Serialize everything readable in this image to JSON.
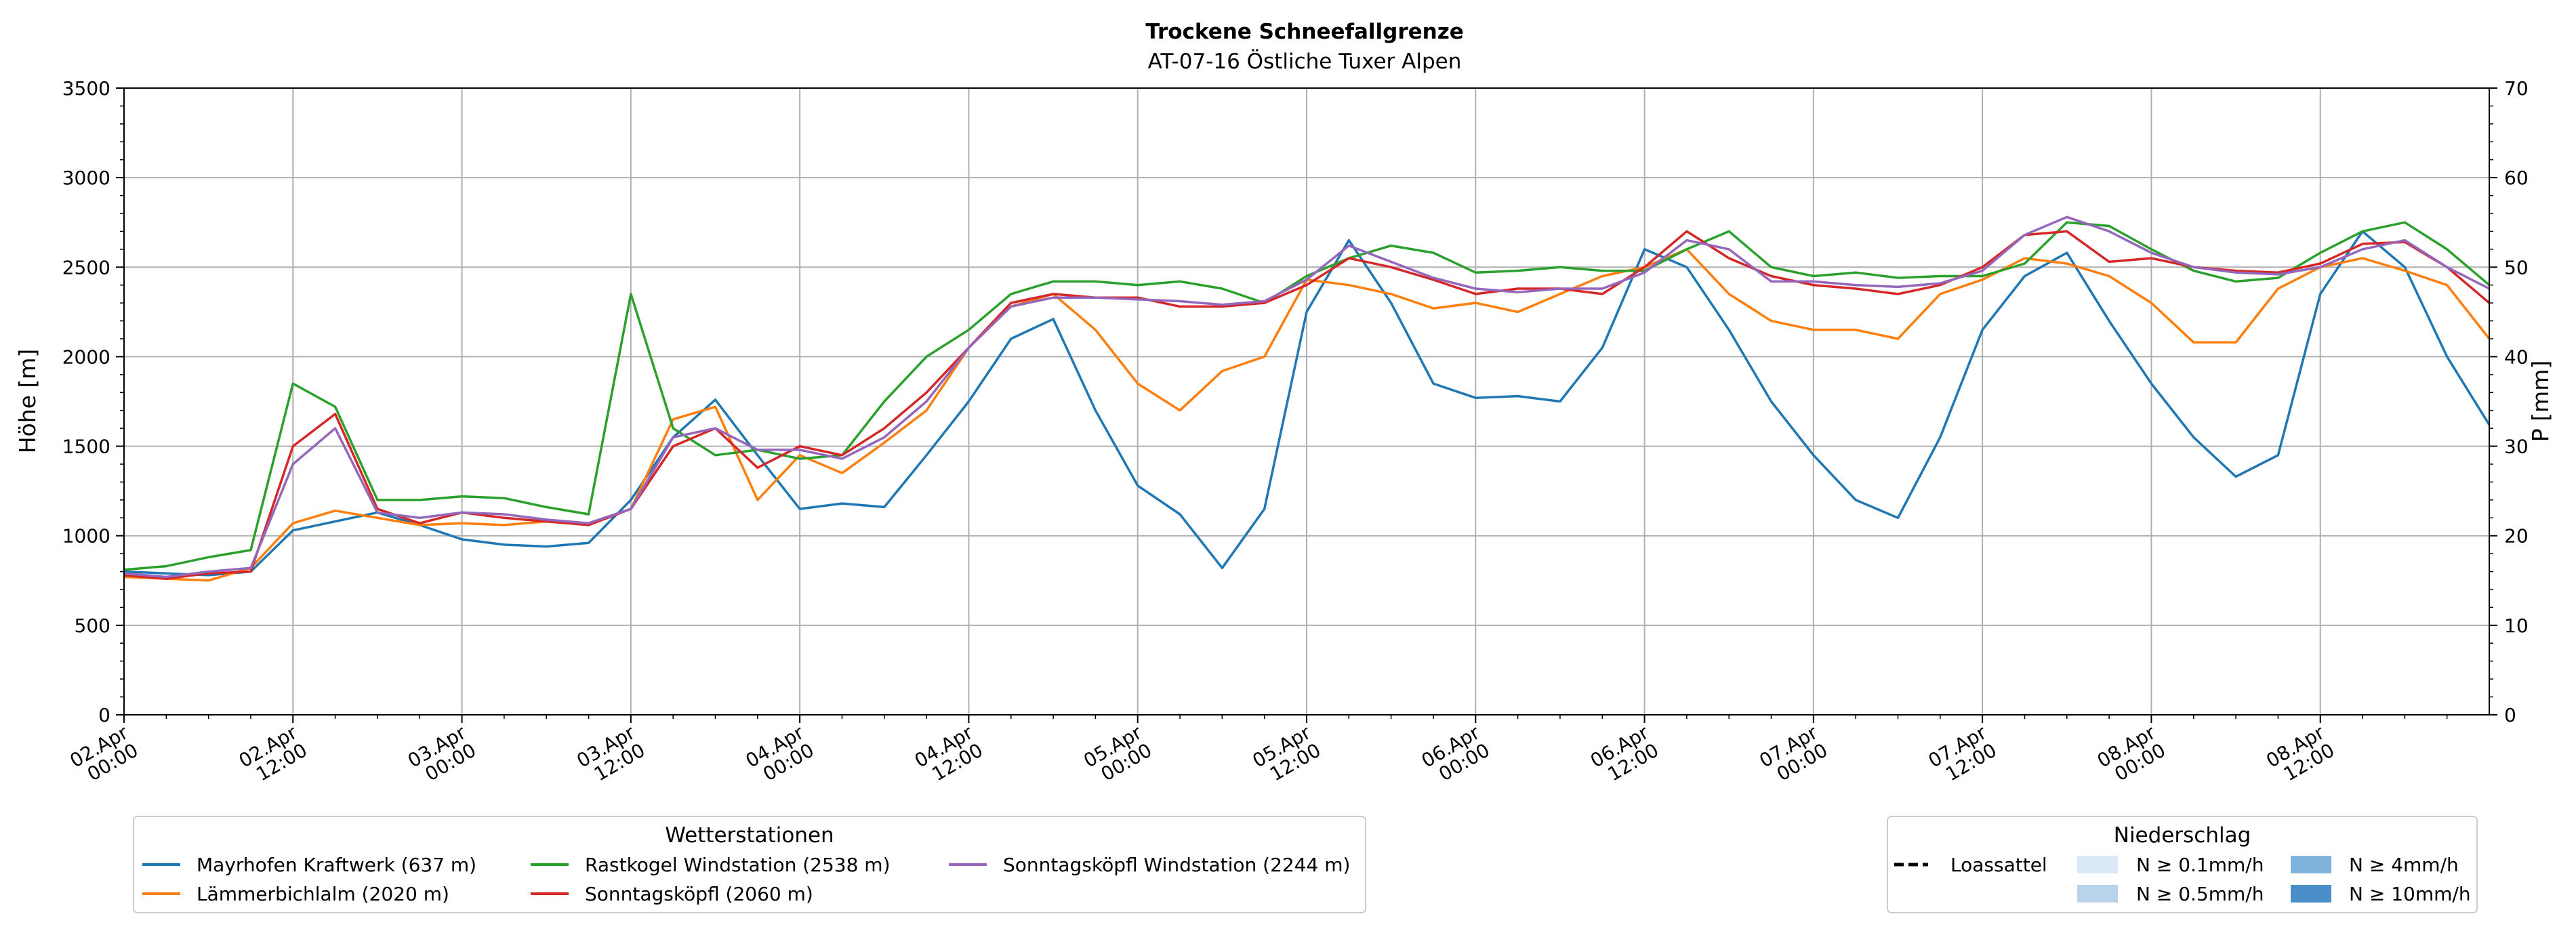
{
  "chart_data": {
    "type": "line",
    "title": "Trockene Schneefallgrenze",
    "subtitle": "AT-07-16 Östliche Tuxer Alpen",
    "ylabel": "Höhe [m]",
    "y2label": "P [mm]",
    "ylim": [
      0,
      3500
    ],
    "y2lim": [
      0,
      70
    ],
    "yticks": [
      0,
      500,
      1000,
      1500,
      2000,
      2500,
      3000,
      3500
    ],
    "y2ticks": [
      0,
      10,
      20,
      30,
      40,
      50,
      60,
      70
    ],
    "xlim": [
      0,
      168
    ],
    "xticks": [
      {
        "t": 0,
        "l1": "02.Apr",
        "l2": "00:00"
      },
      {
        "t": 12,
        "l1": "02.Apr",
        "l2": "12:00"
      },
      {
        "t": 24,
        "l1": "03.Apr",
        "l2": "00:00"
      },
      {
        "t": 36,
        "l1": "03.Apr",
        "l2": "12:00"
      },
      {
        "t": 48,
        "l1": "04.Apr",
        "l2": "00:00"
      },
      {
        "t": 60,
        "l1": "04.Apr",
        "l2": "12:00"
      },
      {
        "t": 72,
        "l1": "05.Apr",
        "l2": "00:00"
      },
      {
        "t": 84,
        "l1": "05.Apr",
        "l2": "12:00"
      },
      {
        "t": 96,
        "l1": "06.Apr",
        "l2": "00:00"
      },
      {
        "t": 108,
        "l1": "06.Apr",
        "l2": "12:00"
      },
      {
        "t": 120,
        "l1": "07.Apr",
        "l2": "00:00"
      },
      {
        "t": 132,
        "l1": "07.Apr",
        "l2": "12:00"
      },
      {
        "t": 144,
        "l1": "08.Apr",
        "l2": "00:00"
      },
      {
        "t": 156,
        "l1": "08.Apr",
        "l2": "12:00"
      }
    ],
    "grid": true,
    "series": [
      {
        "name": "Mayrhofen Kraftwerk (637 m)",
        "color": "#1f77b4",
        "x": [
          0,
          3,
          6,
          9,
          12,
          15,
          18,
          21,
          24,
          27,
          30,
          33,
          36,
          39,
          42,
          45,
          48,
          51,
          54,
          57,
          60,
          63,
          66,
          69,
          72,
          75,
          78,
          81,
          84,
          87,
          90,
          93,
          96,
          99,
          102,
          105,
          108,
          111,
          114,
          117,
          120,
          123,
          126,
          129,
          132,
          135,
          138,
          141,
          144,
          147,
          150,
          153,
          156,
          159,
          162,
          165,
          168
        ],
        "y": [
          800,
          790,
          780,
          800,
          1030,
          1080,
          1130,
          1060,
          980,
          950,
          940,
          960,
          1200,
          1550,
          1760,
          1450,
          1150,
          1180,
          1160,
          1450,
          1750,
          2100,
          2210,
          1700,
          1280,
          1120,
          820,
          1150,
          2250,
          2650,
          2300,
          1850,
          1770,
          1780,
          1750,
          2050,
          2600,
          2500,
          2150,
          1750,
          1450,
          1200,
          1100,
          1550,
          2150,
          2450,
          2580,
          2200,
          1850,
          1550,
          1330,
          1450,
          2350,
          2700,
          2500,
          2000,
          1620
        ]
      },
      {
        "name": "Lämmerbichlalm (2020 m)",
        "color": "#ff7f0e",
        "x": [
          0,
          3,
          6,
          9,
          12,
          15,
          18,
          21,
          24,
          27,
          30,
          33,
          36,
          39,
          42,
          45,
          48,
          51,
          54,
          57,
          60,
          63,
          66,
          69,
          72,
          75,
          78,
          81,
          84,
          87,
          90,
          93,
          96,
          99,
          102,
          105,
          108,
          111,
          114,
          117,
          120,
          123,
          126,
          129,
          132,
          135,
          138,
          141,
          144,
          147,
          150,
          153,
          156,
          159,
          162,
          165,
          168
        ],
        "y": [
          770,
          760,
          750,
          820,
          1070,
          1140,
          1100,
          1060,
          1070,
          1060,
          1080,
          1070,
          1150,
          1650,
          1720,
          1200,
          1450,
          1350,
          1520,
          1700,
          2050,
          2280,
          2350,
          2150,
          1850,
          1700,
          1920,
          2000,
          2430,
          2400,
          2350,
          2270,
          2300,
          2250,
          2350,
          2450,
          2500,
          2600,
          2350,
          2200,
          2150,
          2150,
          2100,
          2350,
          2430,
          2550,
          2520,
          2450,
          2300,
          2080,
          2080,
          2380,
          2500,
          2550,
          2480,
          2400,
          2100
        ]
      },
      {
        "name": "Rastkogel Windstation (2538 m)",
        "color": "#2ca02c",
        "x": [
          0,
          3,
          6,
          9,
          12,
          15,
          18,
          21,
          24,
          27,
          30,
          33,
          36,
          39,
          42,
          45,
          48,
          51,
          54,
          57,
          60,
          63,
          66,
          69,
          72,
          75,
          78,
          81,
          84,
          87,
          90,
          93,
          96,
          99,
          102,
          105,
          108,
          111,
          114,
          117,
          120,
          123,
          126,
          129,
          132,
          135,
          138,
          141,
          144,
          147,
          150,
          153,
          156,
          159,
          162,
          165,
          168
        ],
        "y": [
          810,
          830,
          880,
          920,
          1850,
          1720,
          1200,
          1200,
          1220,
          1210,
          1160,
          1120,
          2350,
          1600,
          1450,
          1480,
          1430,
          1450,
          1750,
          2000,
          2150,
          2350,
          2420,
          2420,
          2400,
          2420,
          2380,
          2300,
          2450,
          2550,
          2620,
          2580,
          2470,
          2480,
          2500,
          2480,
          2480,
          2600,
          2700,
          2500,
          2450,
          2470,
          2440,
          2450,
          2450,
          2520,
          2750,
          2730,
          2600,
          2480,
          2420,
          2440,
          2580,
          2700,
          2750,
          2600,
          2400
        ]
      },
      {
        "name": "Sonntagsköpfl (2060 m)",
        "color": "#d62728",
        "x": [
          0,
          3,
          6,
          9,
          12,
          15,
          18,
          21,
          24,
          27,
          30,
          33,
          36,
          39,
          42,
          45,
          48,
          51,
          54,
          57,
          60,
          63,
          66,
          69,
          72,
          75,
          78,
          81,
          84,
          87,
          90,
          93,
          96,
          99,
          102,
          105,
          108,
          111,
          114,
          117,
          120,
          123,
          126,
          129,
          132,
          135,
          138,
          141,
          144,
          147,
          150,
          153,
          156,
          159,
          162,
          165,
          168
        ],
        "y": [
          780,
          760,
          790,
          800,
          1500,
          1680,
          1150,
          1070,
          1130,
          1100,
          1080,
          1060,
          1150,
          1500,
          1600,
          1380,
          1500,
          1450,
          1600,
          1800,
          2050,
          2300,
          2350,
          2330,
          2330,
          2280,
          2280,
          2300,
          2400,
          2550,
          2500,
          2430,
          2350,
          2380,
          2380,
          2350,
          2500,
          2700,
          2550,
          2450,
          2400,
          2380,
          2350,
          2400,
          2500,
          2680,
          2700,
          2530,
          2550,
          2500,
          2480,
          2470,
          2520,
          2630,
          2640,
          2500,
          2300
        ]
      },
      {
        "name": "Sonntagsköpfl Windstation (2244 m)",
        "color": "#9467bd",
        "x": [
          0,
          3,
          6,
          9,
          12,
          15,
          18,
          21,
          24,
          27,
          30,
          33,
          36,
          39,
          42,
          45,
          48,
          51,
          54,
          57,
          60,
          63,
          66,
          69,
          72,
          75,
          78,
          81,
          84,
          87,
          90,
          93,
          96,
          99,
          102,
          105,
          108,
          111,
          114,
          117,
          120,
          123,
          126,
          129,
          132,
          135,
          138,
          141,
          144,
          147,
          150,
          153,
          156,
          159,
          162,
          165,
          168
        ],
        "y": [
          790,
          770,
          800,
          820,
          1400,
          1600,
          1130,
          1100,
          1130,
          1120,
          1090,
          1070,
          1150,
          1550,
          1600,
          1480,
          1480,
          1430,
          1550,
          1750,
          2050,
          2280,
          2330,
          2330,
          2320,
          2310,
          2290,
          2310,
          2430,
          2620,
          2530,
          2440,
          2380,
          2360,
          2380,
          2380,
          2470,
          2650,
          2600,
          2420,
          2420,
          2400,
          2390,
          2410,
          2480,
          2680,
          2780,
          2700,
          2580,
          2500,
          2470,
          2460,
          2500,
          2600,
          2650,
          2500,
          2380
        ]
      }
    ],
    "legend_stations": {
      "title": "Wetterstationen",
      "placement": "bottom-left"
    },
    "legend_precip": {
      "title": "Niederschlag",
      "placement": "bottom-right",
      "items": [
        {
          "label": "Loassattel",
          "kind": "dashed",
          "color": "#000000"
        },
        {
          "label": "N ≥ 0.1mm/h",
          "kind": "patch",
          "color": "#dbe8f5"
        },
        {
          "label": "N ≥ 0.5mm/h",
          "kind": "patch",
          "color": "#b9d3ea"
        },
        {
          "label": "N ≥ 4mm/h",
          "kind": "patch",
          "color": "#7fb3dc"
        },
        {
          "label": "N ≥ 10mm/h",
          "kind": "patch",
          "color": "#4a8fc7"
        }
      ]
    }
  }
}
